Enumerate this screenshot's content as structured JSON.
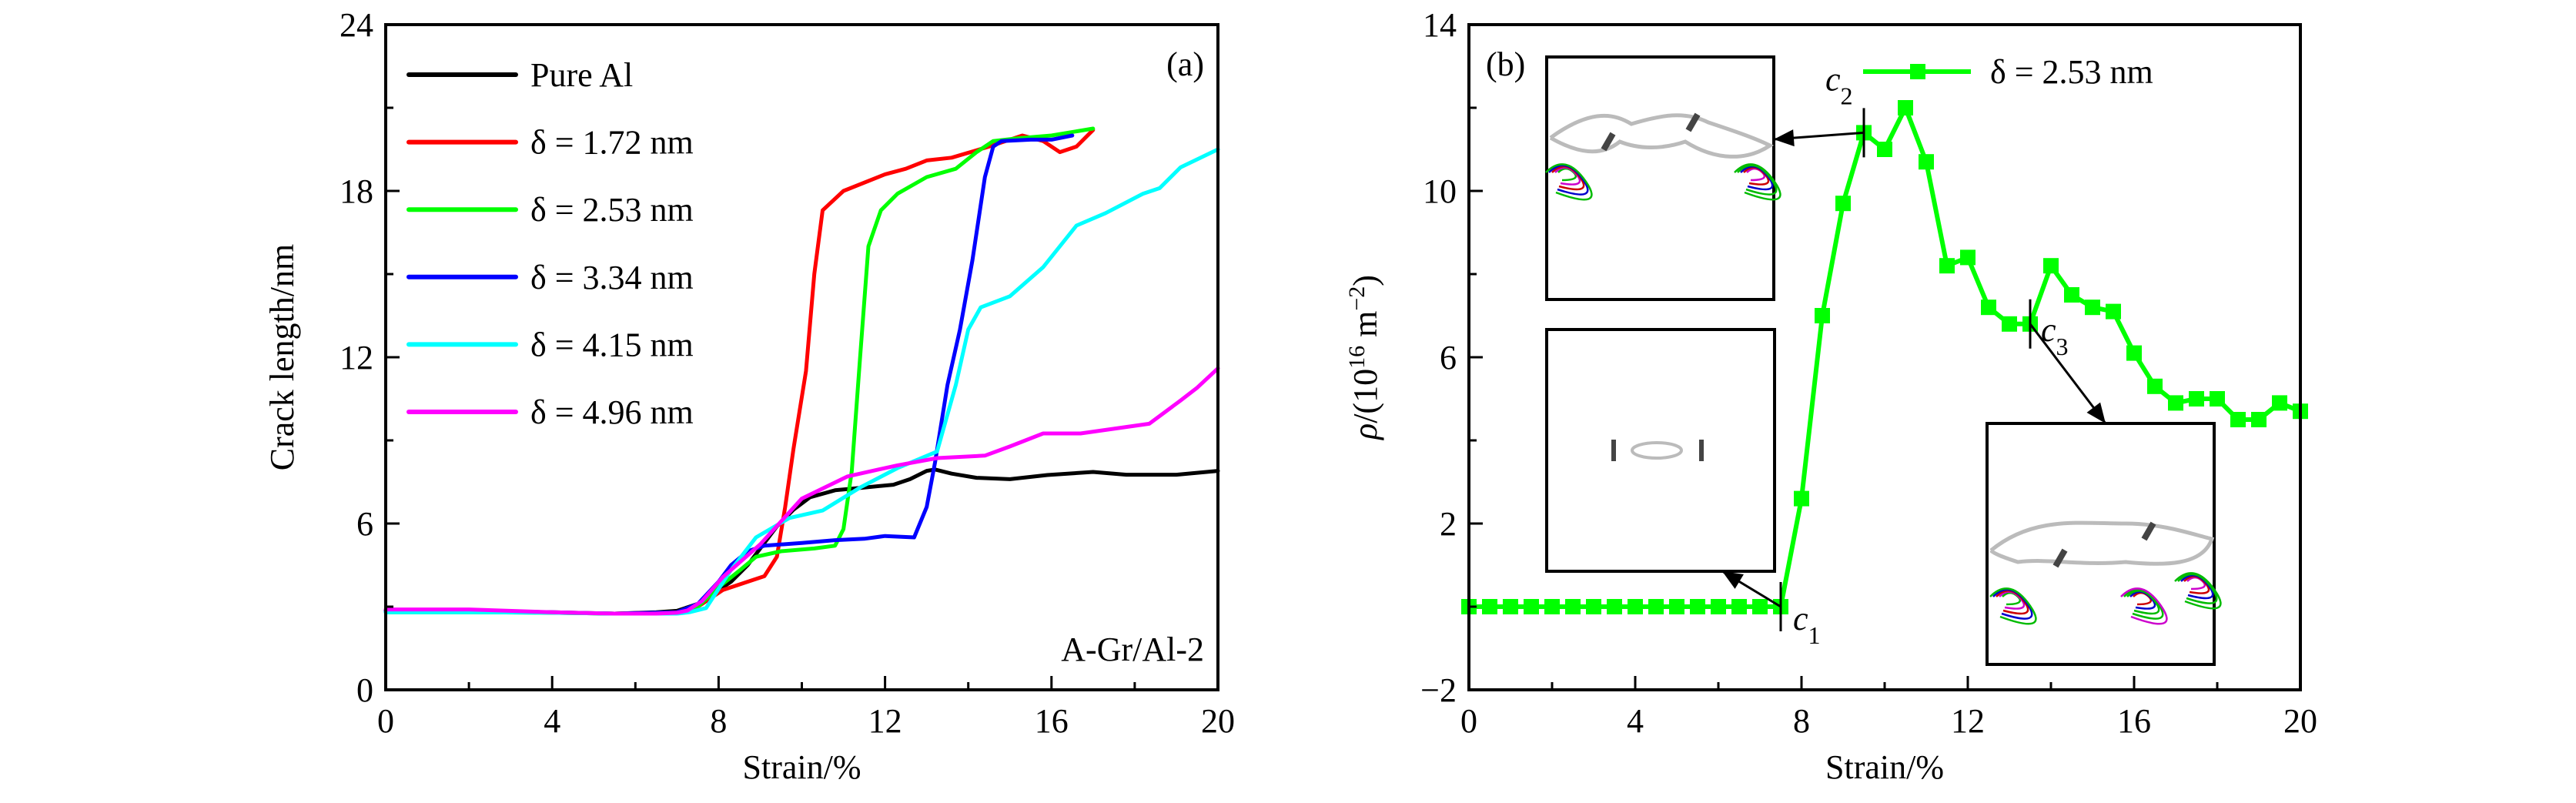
{
  "chart_data": [
    {
      "panel": "(a)",
      "type": "line",
      "title": "",
      "xlabel": "Strain/%",
      "ylabel": "Crack length/nm",
      "xlim": [
        0,
        20
      ],
      "ylim": [
        0,
        24
      ],
      "xticks": [
        0,
        4,
        8,
        12,
        16,
        20
      ],
      "yticks": [
        0,
        6,
        12,
        18,
        24
      ],
      "x_minor_step": 2,
      "y_minor_step": 3,
      "grid": false,
      "legend_position": "top-left",
      "annotation": "A-Gr/Al-2",
      "panel_label": "(a)",
      "series": [
        {
          "name": "Pure Al",
          "color": "#000000",
          "x": [
            0,
            2,
            4,
            5.5,
            6.5,
            7.0,
            7.5,
            8.0,
            8.3,
            8.7,
            9.0,
            9.4,
            9.8,
            10.2,
            10.8,
            11.5,
            12.2,
            12.6,
            13.0,
            13.2,
            13.6,
            14.2,
            15.0,
            15.9,
            17.0,
            17.8,
            19.0,
            20.0
          ],
          "y": [
            2.85,
            2.85,
            2.78,
            2.75,
            2.8,
            2.85,
            3.1,
            3.6,
            3.9,
            4.5,
            5.1,
            5.9,
            6.5,
            6.95,
            7.2,
            7.3,
            7.4,
            7.6,
            7.9,
            7.95,
            7.8,
            7.65,
            7.6,
            7.75,
            7.86,
            7.76,
            7.76,
            7.9
          ]
        },
        {
          "name": "δ = 1.72 nm",
          "color": "#ff0000",
          "x": [
            0,
            2,
            4,
            5.5,
            7.0,
            7.5,
            8.1,
            8.6,
            9.1,
            9.4,
            9.6,
            9.8,
            10.1,
            10.3,
            10.5,
            11.0,
            12.0,
            12.5,
            13.0,
            13.6,
            14.5,
            15.3,
            15.8,
            16.2,
            16.6,
            17.0
          ],
          "y": [
            2.85,
            2.85,
            2.8,
            2.75,
            2.8,
            3.0,
            3.6,
            3.85,
            4.1,
            4.8,
            6.6,
            8.7,
            11.5,
            15.0,
            17.3,
            18.0,
            18.6,
            18.8,
            19.1,
            19.2,
            19.6,
            20.0,
            19.8,
            19.4,
            19.6,
            20.2
          ]
        },
        {
          "name": "δ = 2.53 nm",
          "color": "#00ff00",
          "x": [
            0,
            2,
            4,
            5.5,
            7.0,
            7.5,
            8.0,
            8.5,
            8.9,
            9.5,
            10.3,
            10.8,
            11.0,
            11.2,
            11.4,
            11.6,
            11.9,
            12.3,
            13.0,
            13.7,
            14.2,
            14.6,
            15.2,
            16.0,
            17.0
          ],
          "y": [
            2.8,
            2.8,
            2.78,
            2.75,
            2.78,
            3.0,
            3.7,
            4.3,
            4.8,
            5.0,
            5.1,
            5.2,
            5.8,
            7.9,
            12.0,
            16.0,
            17.3,
            17.9,
            18.5,
            18.8,
            19.4,
            19.8,
            19.9,
            20.0,
            20.25
          ]
        },
        {
          "name": "δ = 3.34 nm",
          "color": "#0000ff",
          "x": [
            0,
            2,
            4,
            5.5,
            7.0,
            7.5,
            8.0,
            8.3,
            8.7,
            9.1,
            10.0,
            10.8,
            11.5,
            12.0,
            12.7,
            13.0,
            13.2,
            13.5,
            13.8,
            14.1,
            14.4,
            14.6,
            14.8,
            15.5,
            16.0,
            16.5
          ],
          "y": [
            2.85,
            2.85,
            2.8,
            2.75,
            2.8,
            3.1,
            3.9,
            4.5,
            5.0,
            5.2,
            5.3,
            5.4,
            5.45,
            5.55,
            5.5,
            6.6,
            8.2,
            11.0,
            13.0,
            15.5,
            18.5,
            19.6,
            19.8,
            19.85,
            19.85,
            20.0
          ]
        },
        {
          "name": "δ = 4.15 nm",
          "color": "#00ffff",
          "x": [
            0,
            2,
            4,
            5.5,
            7.0,
            7.3,
            7.7,
            8.3,
            8.9,
            9.7,
            10.5,
            11.4,
            12.3,
            13.25,
            13.7,
            14.0,
            14.3,
            15.0,
            15.8,
            16.6,
            17.3,
            18.2,
            18.6,
            19.1,
            20.0
          ],
          "y": [
            2.8,
            2.8,
            2.78,
            2.75,
            2.75,
            2.8,
            2.95,
            4.33,
            5.5,
            6.2,
            6.47,
            7.3,
            8.0,
            8.6,
            11.0,
            13.0,
            13.8,
            14.2,
            15.25,
            16.75,
            17.2,
            17.9,
            18.1,
            18.85,
            19.5
          ]
        },
        {
          "name": "δ = 4.96 nm",
          "color": "#ff00ff",
          "x": [
            0,
            2,
            4,
            5.5,
            6.5,
            7.0,
            7.25,
            7.6,
            8.1,
            9.0,
            10.0,
            11.1,
            12.3,
            13.25,
            14.4,
            15.0,
            15.8,
            16.7,
            17.5,
            18.35,
            19.1,
            19.5,
            20.0
          ],
          "y": [
            2.9,
            2.9,
            2.8,
            2.75,
            2.75,
            2.78,
            2.86,
            3.2,
            4.06,
            5.25,
            6.9,
            7.7,
            8.1,
            8.36,
            8.45,
            8.78,
            9.25,
            9.25,
            9.42,
            9.6,
            10.44,
            10.9,
            11.6
          ]
        }
      ]
    },
    {
      "panel": "(b)",
      "type": "line",
      "title": "",
      "xlabel": "Strain/%",
      "ylabel": "ρ/(10^16 m^-2)",
      "ylabel_parts": {
        "prefix": "ρ/(10",
        "exp1": "16",
        "mid": " m",
        "exp2": "−2",
        "suffix": ")"
      },
      "xlim": [
        0,
        20
      ],
      "ylim": [
        -2,
        14
      ],
      "xticks": [
        0,
        4,
        8,
        12,
        16,
        20
      ],
      "yticks": [
        -2,
        2,
        6,
        10,
        14
      ],
      "ytick_labels": [
        "−2",
        "2",
        "6",
        "10",
        "14"
      ],
      "x_minor_step": 2,
      "y_minor_step": 2,
      "grid": false,
      "legend_position": "top-right",
      "panel_label": "(b)",
      "series": [
        {
          "name": "δ = 2.53 nm",
          "color": "#00ff00",
          "marker": "square",
          "x": [
            0,
            0.5,
            1,
            1.5,
            2,
            2.5,
            3,
            3.5,
            4,
            4.5,
            5,
            5.5,
            6,
            6.5,
            7,
            7.5,
            8,
            8.5,
            9,
            9.5,
            10,
            10.5,
            11,
            11.5,
            12,
            12.5,
            13,
            13.5,
            14,
            14.5,
            15,
            15.5,
            16,
            16.5,
            17,
            17.5,
            18,
            18.5,
            19,
            19.5,
            20
          ],
          "y": [
            0,
            0,
            0,
            0,
            0,
            0,
            0,
            0,
            0,
            0,
            0,
            0,
            0,
            0,
            0,
            0,
            2.6,
            7.0,
            9.7,
            11.4,
            11.0,
            12.0,
            10.7,
            8.2,
            8.4,
            7.2,
            6.8,
            6.8,
            8.2,
            7.5,
            7.2,
            7.1,
            6.1,
            5.3,
            4.9,
            5.0,
            5.0,
            4.5,
            4.5,
            4.9,
            4.7
          ]
        }
      ],
      "annotations": [
        {
          "label": "c",
          "sub": "1",
          "x": 7.5,
          "y": 0,
          "points_to": "inset-c1"
        },
        {
          "label": "c",
          "sub": "2",
          "x": 9.5,
          "y": 11.4,
          "points_to": "inset-c2"
        },
        {
          "label": "c",
          "sub": "3",
          "x": 13.5,
          "y": 6.8,
          "points_to": "inset-c3"
        }
      ],
      "insets": [
        {
          "id": "inset-c2",
          "description": "atomistic snapshot at c2: crack with dislocations at both ends",
          "position": "top-left"
        },
        {
          "id": "inset-c1",
          "description": "atomistic snapshot at c1: initial crack with two graphene flakes",
          "position": "middle-left"
        },
        {
          "id": "inset-c3",
          "description": "atomistic snapshot at c3: elongated crack",
          "position": "bottom-right"
        }
      ]
    }
  ]
}
